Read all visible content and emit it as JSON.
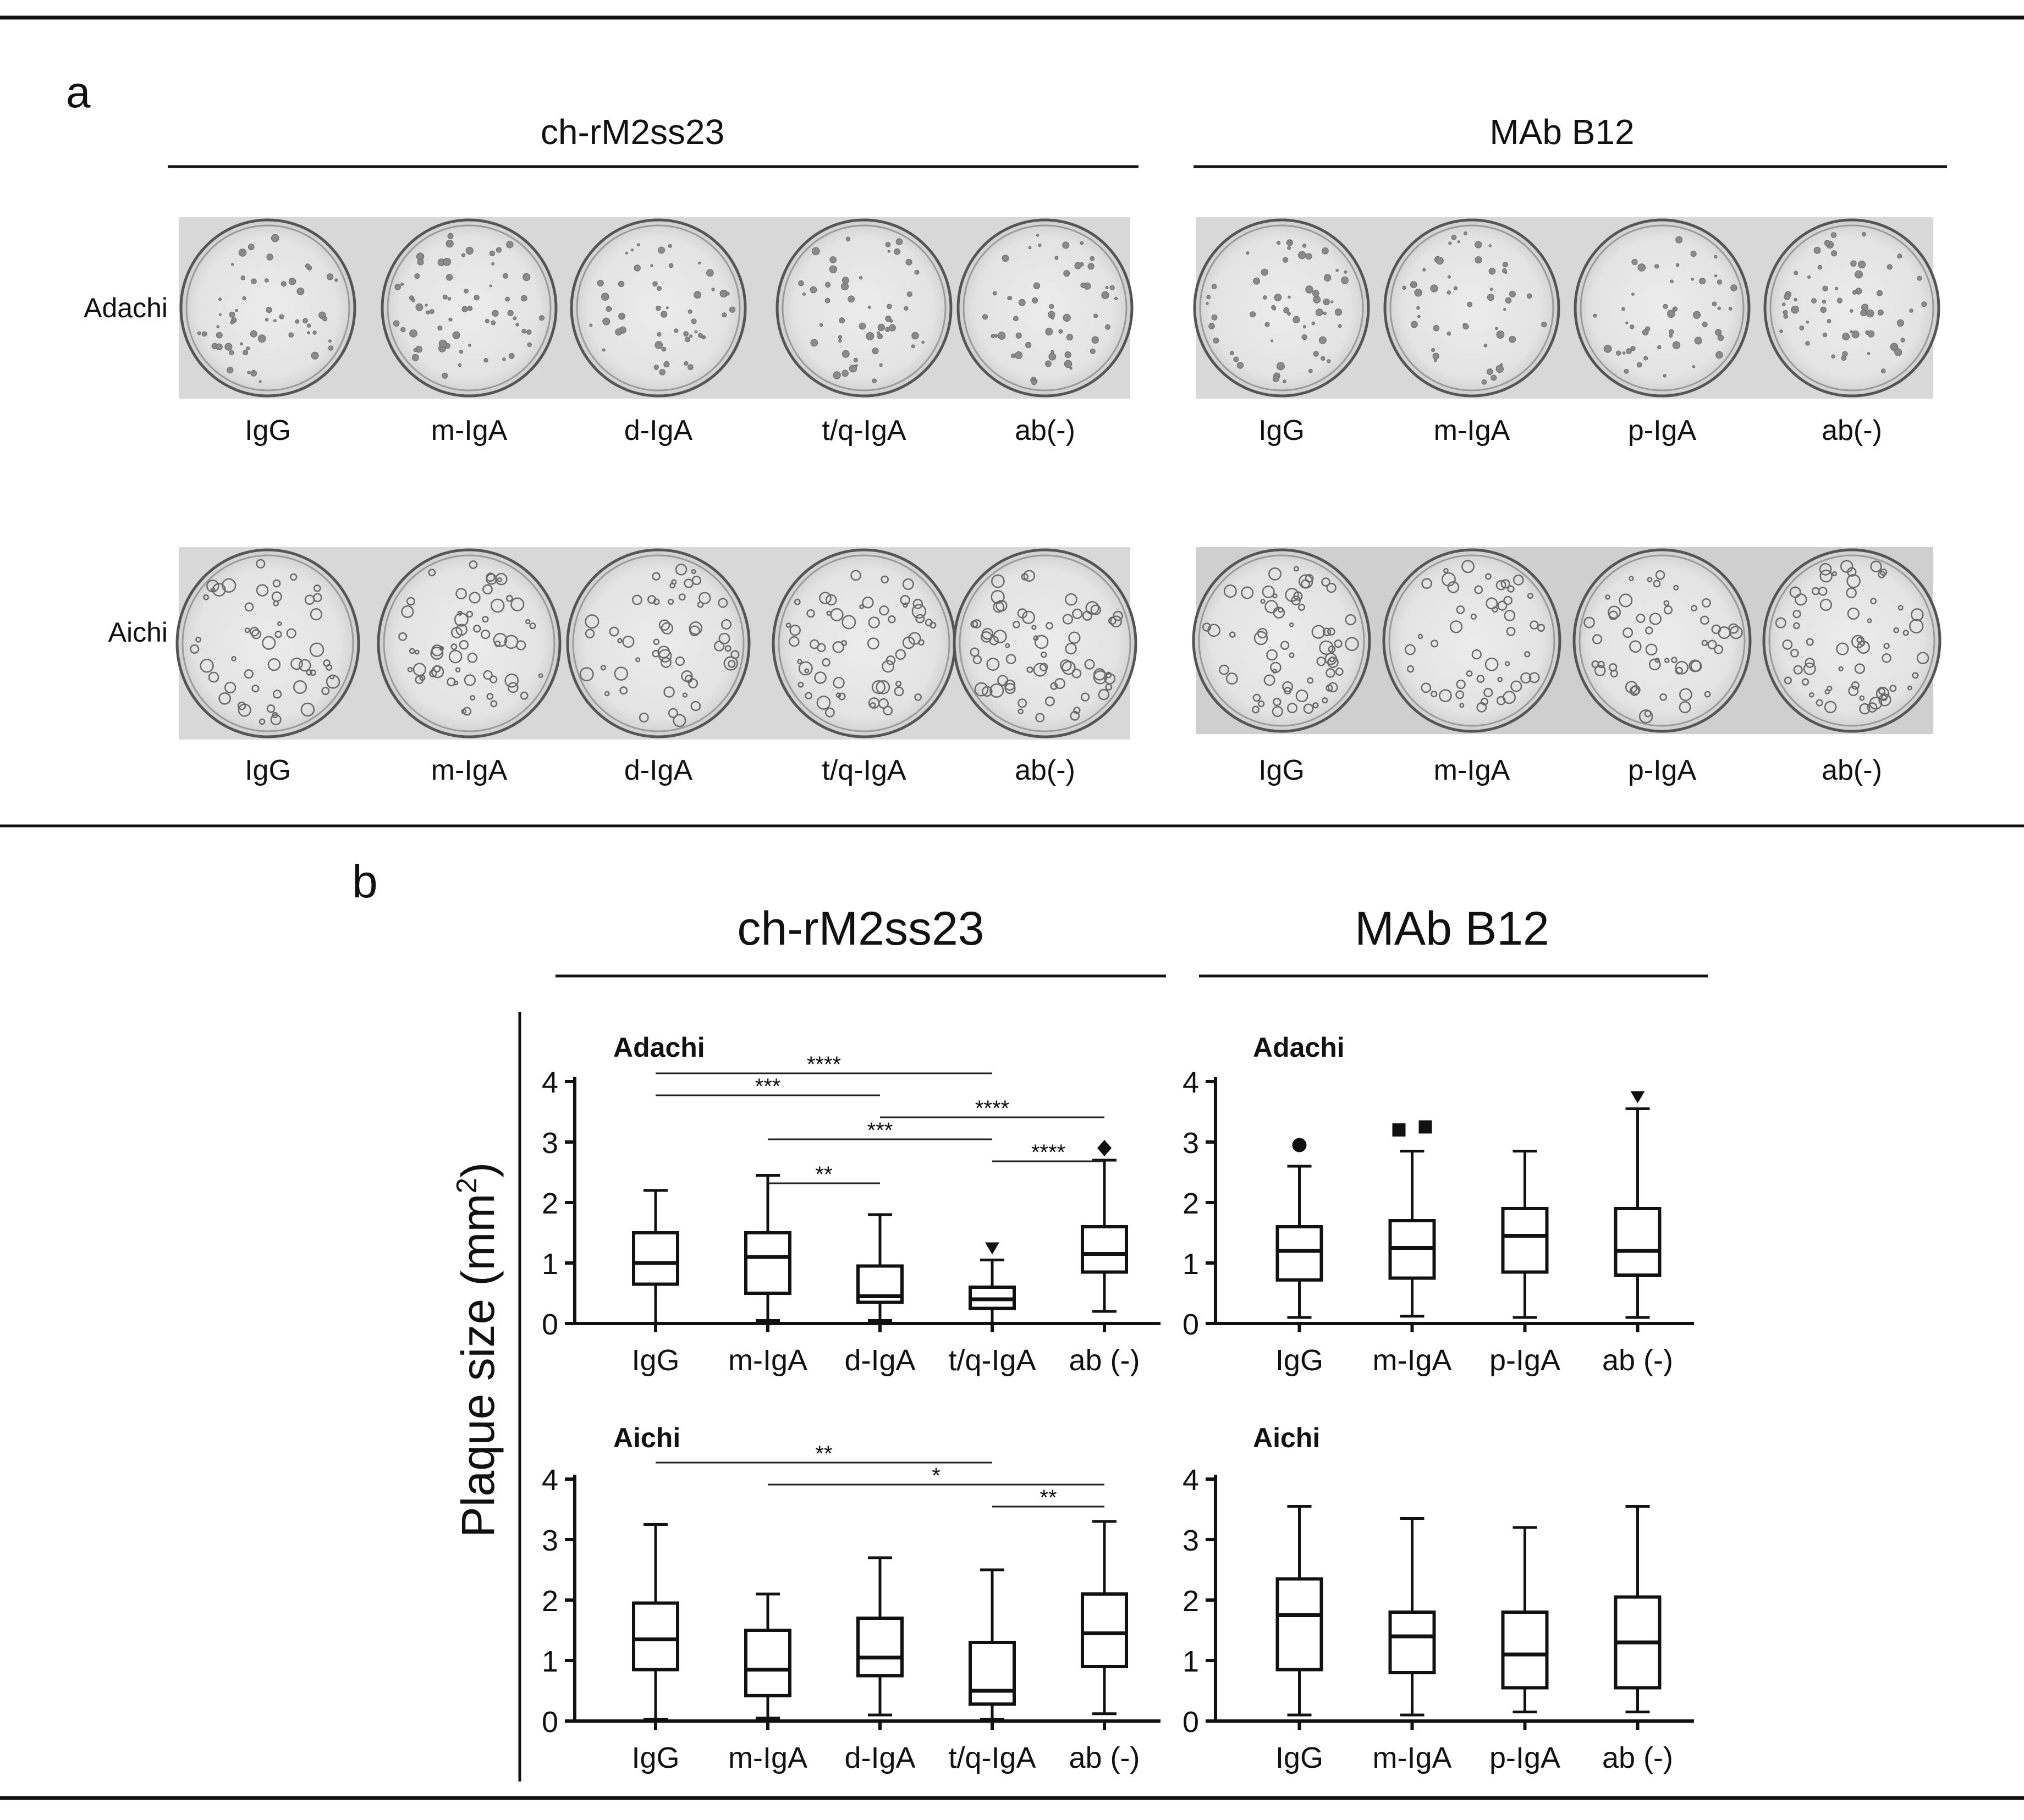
{
  "panel_a": {
    "label": "a",
    "groups": [
      {
        "title": "ch-rM2ss23",
        "wells": [
          "IgG",
          "m-IgA",
          "d-IgA",
          "t/q-IgA",
          "ab(-)"
        ]
      },
      {
        "title": "MAb B12",
        "wells": [
          "IgG",
          "m-IgA",
          "p-IgA",
          "ab(-)"
        ]
      }
    ],
    "rows": [
      "Adachi",
      "Aichi"
    ]
  },
  "panel_b": {
    "label": "b",
    "group_titles": [
      "ch-rM2ss23",
      "MAb B12"
    ],
    "ylabel_main": "Plaque size (mm",
    "ylabel_sup": "2",
    "ylabel_close": ")"
  },
  "chart_data": [
    {
      "type": "box",
      "title": "Adachi",
      "group": "ch-rM2ss23",
      "categories": [
        "IgG",
        "m-IgA",
        "d-IgA",
        "t/q-IgA",
        "ab (-)"
      ],
      "ylim": [
        0,
        4
      ],
      "yticks": [
        "0",
        "1",
        "2",
        "3",
        "4"
      ],
      "boxes": [
        {
          "min": 0.0,
          "q1": 0.65,
          "median": 1.0,
          "q3": 1.5,
          "max": 2.2
        },
        {
          "min": 0.05,
          "q1": 0.5,
          "median": 1.1,
          "q3": 1.5,
          "max": 2.45
        },
        {
          "min": 0.05,
          "q1": 0.35,
          "median": 0.45,
          "q3": 0.95,
          "max": 1.8
        },
        {
          "min": 0.0,
          "q1": 0.25,
          "median": 0.4,
          "q3": 0.6,
          "max": 1.05
        },
        {
          "min": 0.2,
          "q1": 0.85,
          "median": 1.15,
          "q3": 1.6,
          "max": 2.7
        }
      ],
      "outliers": [
        {
          "category": "t/q-IgA",
          "value": 1.25,
          "marker": "triangle-down"
        },
        {
          "category": "ab (-)",
          "value": 2.9,
          "marker": "diamond"
        }
      ],
      "significance": [
        {
          "from": "IgG",
          "to": "t/q-IgA",
          "label": "****"
        },
        {
          "from": "IgG",
          "to": "d-IgA",
          "label": "***"
        },
        {
          "from": "d-IgA",
          "to": "ab (-)",
          "label": "****"
        },
        {
          "from": "m-IgA",
          "to": "t/q-IgA",
          "label": "***"
        },
        {
          "from": "t/q-IgA",
          "to": "ab (-)",
          "label": "****"
        },
        {
          "from": "m-IgA",
          "to": "d-IgA",
          "label": "**"
        }
      ]
    },
    {
      "type": "box",
      "title": "Adachi",
      "group": "MAb B12",
      "categories": [
        "IgG",
        "m-IgA",
        "p-IgA",
        "ab (-)"
      ],
      "ylim": [
        0,
        4
      ],
      "yticks": [
        "0",
        "1",
        "2",
        "3",
        "4"
      ],
      "boxes": [
        {
          "min": 0.1,
          "q1": 0.72,
          "median": 1.2,
          "q3": 1.6,
          "max": 2.6
        },
        {
          "min": 0.12,
          "q1": 0.75,
          "median": 1.25,
          "q3": 1.7,
          "max": 2.85
        },
        {
          "min": 0.1,
          "q1": 0.85,
          "median": 1.45,
          "q3": 1.9,
          "max": 2.85
        },
        {
          "min": 0.1,
          "q1": 0.8,
          "median": 1.2,
          "q3": 1.9,
          "max": 3.55
        }
      ],
      "outliers": [
        {
          "category": "IgG",
          "value": 2.95,
          "marker": "circle"
        },
        {
          "category": "m-IgA",
          "value": 3.2,
          "marker": "square",
          "offset": -1
        },
        {
          "category": "m-IgA",
          "value": 3.25,
          "marker": "square",
          "offset": 1
        },
        {
          "category": "ab (-)",
          "value": 3.75,
          "marker": "triangle-down"
        }
      ],
      "significance": []
    },
    {
      "type": "box",
      "title": "Aichi",
      "group": "ch-rM2ss23",
      "categories": [
        "IgG",
        "m-IgA",
        "d-IgA",
        "t/q-IgA",
        "ab (-)"
      ],
      "ylim": [
        0,
        4
      ],
      "yticks": [
        "0",
        "1",
        "2",
        "3",
        "4"
      ],
      "boxes": [
        {
          "min": 0.03,
          "q1": 0.85,
          "median": 1.35,
          "q3": 1.95,
          "max": 3.25
        },
        {
          "min": 0.05,
          "q1": 0.42,
          "median": 0.85,
          "q3": 1.5,
          "max": 2.1
        },
        {
          "min": 0.1,
          "q1": 0.75,
          "median": 1.05,
          "q3": 1.7,
          "max": 2.7
        },
        {
          "min": 0.03,
          "q1": 0.28,
          "median": 0.5,
          "q3": 1.3,
          "max": 2.5
        },
        {
          "min": 0.12,
          "q1": 0.9,
          "median": 1.45,
          "q3": 2.1,
          "max": 3.3
        }
      ],
      "outliers": [],
      "significance": [
        {
          "from": "IgG",
          "to": "t/q-IgA",
          "label": "**"
        },
        {
          "from": "m-IgA",
          "to": "ab (-)",
          "label": "*"
        },
        {
          "from": "t/q-IgA",
          "to": "ab (-)",
          "label": "**"
        }
      ]
    },
    {
      "type": "box",
      "title": "Aichi",
      "group": "MAb B12",
      "categories": [
        "IgG",
        "m-IgA",
        "p-IgA",
        "ab (-)"
      ],
      "ylim": [
        0,
        4
      ],
      "yticks": [
        "0",
        "1",
        "2",
        "3",
        "4"
      ],
      "boxes": [
        {
          "min": 0.1,
          "q1": 0.85,
          "median": 1.75,
          "q3": 2.35,
          "max": 3.55
        },
        {
          "min": 0.1,
          "q1": 0.8,
          "median": 1.4,
          "q3": 1.8,
          "max": 3.35
        },
        {
          "min": 0.15,
          "q1": 0.55,
          "median": 1.1,
          "q3": 1.8,
          "max": 3.2
        },
        {
          "min": 0.15,
          "q1": 0.55,
          "median": 1.3,
          "q3": 2.05,
          "max": 3.55
        }
      ],
      "outliers": [],
      "significance": []
    }
  ]
}
